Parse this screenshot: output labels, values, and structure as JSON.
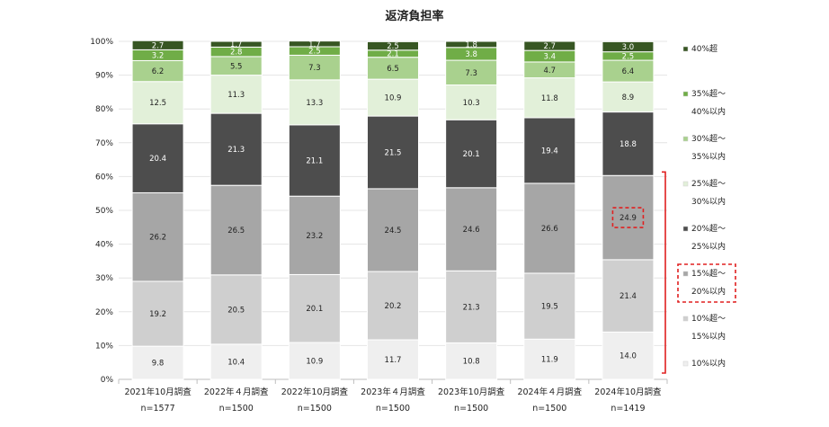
{
  "chart_data": {
    "type": "bar",
    "stacked": true,
    "title": "返済負担率",
    "ylim": [
      0,
      100
    ],
    "yticks": [
      "0%",
      "10%",
      "20%",
      "30%",
      "40%",
      "50%",
      "60%",
      "70%",
      "80%",
      "90%",
      "100%"
    ],
    "categories": [
      {
        "label": "2021年10月調査",
        "n": "n=1577"
      },
      {
        "label": "2022年４月調査",
        "n": "n=1500"
      },
      {
        "label": "2022年10月調査",
        "n": "n=1500"
      },
      {
        "label": "2023年４月調査",
        "n": "n=1500"
      },
      {
        "label": "2023年10月調査",
        "n": "n=1500"
      },
      {
        "label": "2024年４月調査",
        "n": "n=1500"
      },
      {
        "label": "2024年10月調査",
        "n": "n=1419"
      }
    ],
    "series": [
      {
        "name": "10%以内",
        "color": "#efefef",
        "label_color": "#222222",
        "values": [
          9.8,
          10.4,
          10.9,
          11.7,
          10.8,
          11.9,
          14.0
        ]
      },
      {
        "name": "10%超～15%以内",
        "color": "#cfcfcf",
        "label_color": "#222222",
        "values": [
          19.2,
          20.5,
          20.1,
          20.2,
          21.3,
          19.5,
          21.4
        ]
      },
      {
        "name": "15%超～20%以内",
        "color": "#a6a6a6",
        "label_color": "#222222",
        "values": [
          26.2,
          26.5,
          23.2,
          24.5,
          24.6,
          26.6,
          24.9
        ]
      },
      {
        "name": "20%超～25%以内",
        "color": "#4d4d4d",
        "label_color": "#ffffff",
        "values": [
          20.4,
          21.3,
          21.1,
          21.5,
          20.1,
          19.4,
          18.8
        ]
      },
      {
        "name": "25%超～30%以内",
        "color": "#e2f0d9",
        "label_color": "#222222",
        "values": [
          12.5,
          11.3,
          13.3,
          10.9,
          10.3,
          11.8,
          8.9
        ]
      },
      {
        "name": "30%超～35%以内",
        "color": "#a9d18e",
        "label_color": "#222222",
        "values": [
          6.2,
          5.5,
          7.3,
          6.5,
          7.3,
          4.7,
          6.4
        ]
      },
      {
        "name": "35%超～40%以内",
        "color": "#70ad47",
        "label_color": "#ffffff",
        "values": [
          3.2,
          2.8,
          2.5,
          2.1,
          3.8,
          3.4,
          2.5
        ]
      },
      {
        "name": "40%超",
        "color": "#375623",
        "label_color": "#ffffff",
        "values": [
          2.7,
          1.7,
          1.7,
          2.5,
          1.8,
          2.7,
          3.0
        ]
      }
    ],
    "legend": {
      "position": "right",
      "entries": [
        {
          "lines": [
            "40%超"
          ],
          "color": "#375623"
        },
        {
          "lines": [
            "35%超～",
            "40%以内"
          ],
          "color": "#70ad47"
        },
        {
          "lines": [
            "30%超～",
            "35%以内"
          ],
          "color": "#a9d18e"
        },
        {
          "lines": [
            "25%超～",
            "30%以内"
          ],
          "color": "#e2f0d9"
        },
        {
          "lines": [
            "20%超～",
            "25%以内"
          ],
          "color": "#4d4d4d"
        },
        {
          "lines": [
            "15%超～",
            "20%以内"
          ],
          "color": "#a6a6a6"
        },
        {
          "lines": [
            "10%超～",
            "15%以内"
          ],
          "color": "#cfcfcf"
        },
        {
          "lines": [
            "10%以内"
          ],
          "color": "#efefef"
        }
      ]
    },
    "highlights": {
      "dashed_box_color": "#e02020",
      "highlighted_value": {
        "category": "2024年10月調査",
        "series": "15%超～20%以内",
        "value": 24.9
      },
      "highlighted_legend": "15%超～20%以内",
      "bracket_series_range": [
        "10%以内",
        "15%超～20%以内"
      ]
    }
  }
}
